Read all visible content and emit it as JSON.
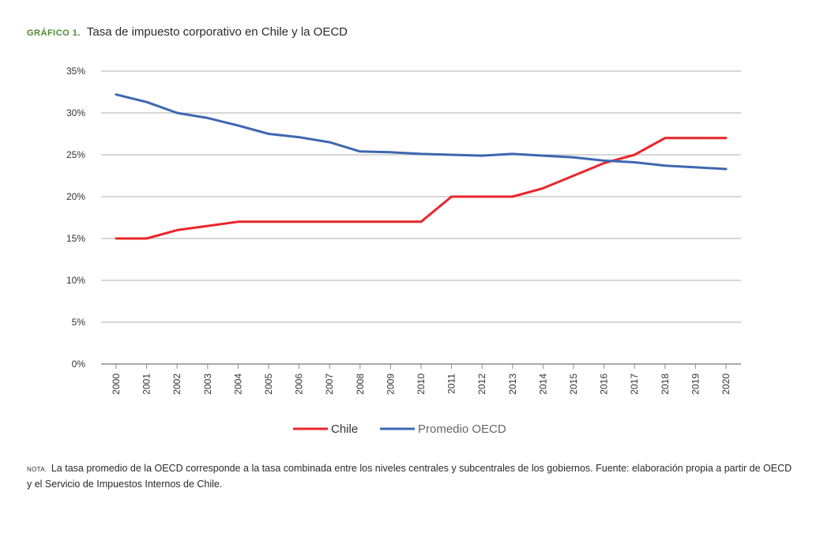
{
  "header": {
    "label": "GRÁFICO 1.",
    "title": "Tasa de impuesto corporativo en Chile y la OECD"
  },
  "note": {
    "label": "NOTA:",
    "text": "La tasa promedio de la OECD corresponde a la tasa combinada entre los niveles centrales y subcentrales de los gobiernos. Fuente: elaboración propia a partir de OECD y el Servicio de Impuestos Internos de Chile."
  },
  "colors": {
    "chile": "#e8262b",
    "oecd": "#3d67b1",
    "grid": "#bfbfbf",
    "title_label": "#4c8a2e"
  },
  "chart_data": {
    "type": "line",
    "title": "Tasa de impuesto corporativo en Chile y la OECD",
    "xlabel": "",
    "ylabel": "",
    "categories": [
      "2000",
      "2001",
      "2002",
      "2003",
      "2004",
      "2005",
      "2006",
      "2007",
      "2008",
      "2009",
      "2010",
      "2011",
      "2012",
      "2013",
      "2014",
      "2015",
      "2016",
      "2017",
      "2018",
      "2019",
      "2020"
    ],
    "y_ticks": [
      "0%",
      "5%",
      "10%",
      "15%",
      "20%",
      "25%",
      "30%",
      "35%"
    ],
    "ylim": [
      0,
      35
    ],
    "grid": true,
    "legend_position": "bottom-center",
    "series": [
      {
        "name": "Chile",
        "color": "#e8262b",
        "values": [
          15,
          15,
          16,
          16.5,
          17,
          17,
          17,
          17,
          17,
          17,
          17,
          20,
          20,
          20,
          21,
          22.5,
          24,
          25,
          27,
          27,
          27
        ]
      },
      {
        "name": "Promedio OECD",
        "color": "#3d67b1",
        "values": [
          32.2,
          31.3,
          30,
          29.4,
          28.5,
          27.5,
          27.1,
          26.5,
          25.4,
          25.3,
          25.1,
          25.0,
          24.9,
          25.1,
          24.9,
          24.7,
          24.3,
          24.1,
          23.7,
          23.5,
          23.3
        ]
      }
    ]
  }
}
